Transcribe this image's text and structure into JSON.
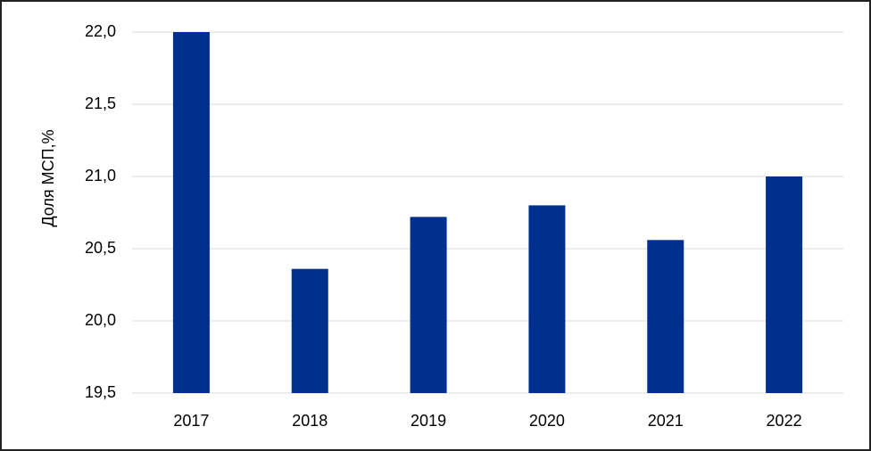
{
  "chart_data": {
    "type": "bar",
    "y_label": "Доля МСП,%",
    "categories": [
      "2017",
      "2018",
      "2019",
      "2020",
      "2021",
      "2022"
    ],
    "values": [
      22.0,
      20.36,
      20.72,
      20.8,
      20.56,
      21.0
    ],
    "color": "#00308f",
    "ylim": [
      19.5,
      22.0
    ],
    "yticks": [
      {
        "value": 19.5,
        "label": "19,5"
      },
      {
        "value": 20.0,
        "label": "20,0"
      },
      {
        "value": 20.5,
        "label": "20,5"
      },
      {
        "value": 21.0,
        "label": "21,0"
      },
      {
        "value": 21.5,
        "label": "21,5"
      },
      {
        "value": 22.0,
        "label": "22,0"
      }
    ],
    "grid": true
  }
}
